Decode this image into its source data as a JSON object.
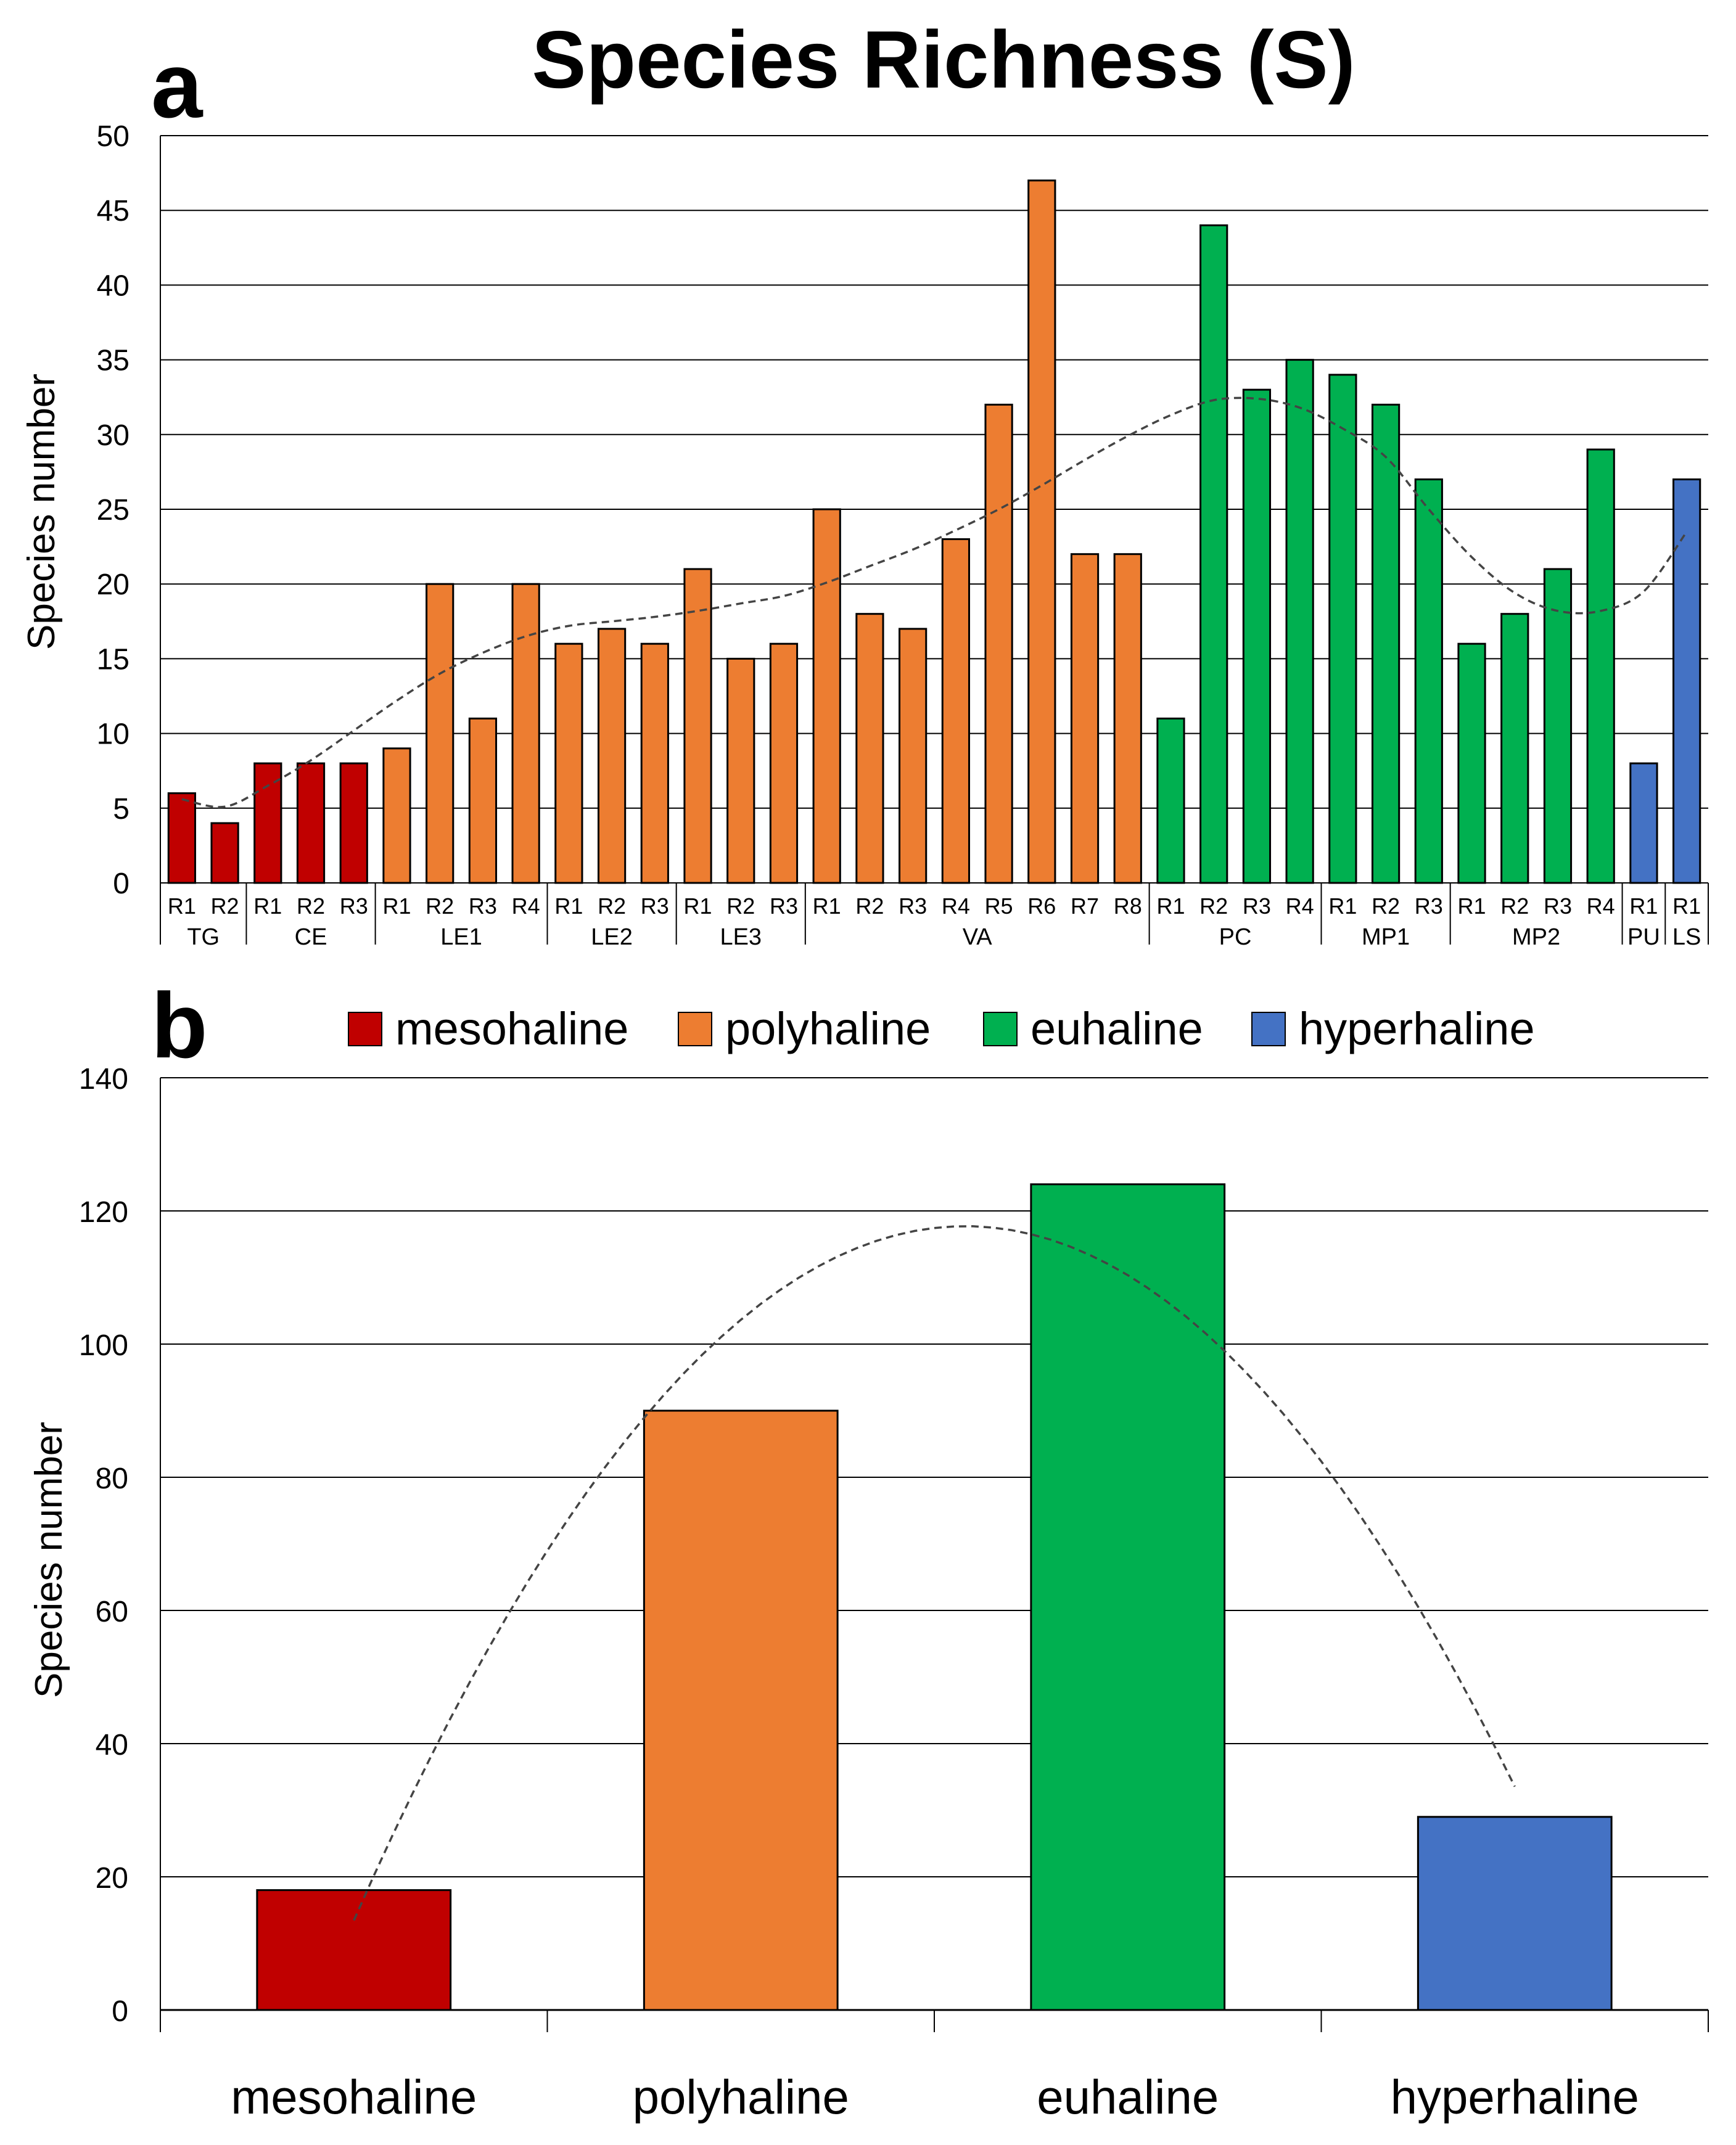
{
  "figure_title": "Species Richness (S)",
  "colors": {
    "mesohaline": "#C00000",
    "polyhaline": "#ED7D31",
    "euhaline": "#00B050",
    "hyperhaline": "#4472C4"
  },
  "chart_data": [
    {
      "panel": "a",
      "type": "bar",
      "title": "Species Richness (S)",
      "xlabel": "",
      "ylabel": "Species number",
      "ylim": [
        0,
        50
      ],
      "ytick_step": 5,
      "yticks": [
        "0",
        "5",
        "10",
        "15",
        "20",
        "25",
        "30",
        "35",
        "40",
        "45",
        "50"
      ],
      "grid": true,
      "trendline": "dashed polynomial",
      "bars": [
        {
          "site": "TG",
          "label": "R1",
          "value": 6,
          "zone": "mesohaline"
        },
        {
          "site": "TG",
          "label": "R2",
          "value": 4,
          "zone": "mesohaline"
        },
        {
          "site": "CE",
          "label": "R1",
          "value": 8,
          "zone": "mesohaline"
        },
        {
          "site": "CE",
          "label": "R2",
          "value": 8,
          "zone": "mesohaline"
        },
        {
          "site": "CE",
          "label": "R3",
          "value": 8,
          "zone": "mesohaline"
        },
        {
          "site": "LE1",
          "label": "R1",
          "value": 9,
          "zone": "polyhaline"
        },
        {
          "site": "LE1",
          "label": "R2",
          "value": 20,
          "zone": "polyhaline"
        },
        {
          "site": "LE1",
          "label": "R3",
          "value": 11,
          "zone": "polyhaline"
        },
        {
          "site": "LE1",
          "label": "R4",
          "value": 20,
          "zone": "polyhaline"
        },
        {
          "site": "LE2",
          "label": "R1",
          "value": 16,
          "zone": "polyhaline"
        },
        {
          "site": "LE2",
          "label": "R2",
          "value": 17,
          "zone": "polyhaline"
        },
        {
          "site": "LE2",
          "label": "R3",
          "value": 16,
          "zone": "polyhaline"
        },
        {
          "site": "LE3",
          "label": "R1",
          "value": 21,
          "zone": "polyhaline"
        },
        {
          "site": "LE3",
          "label": "R2",
          "value": 15,
          "zone": "polyhaline"
        },
        {
          "site": "LE3",
          "label": "R3",
          "value": 16,
          "zone": "polyhaline"
        },
        {
          "site": "VA",
          "label": "R1",
          "value": 25,
          "zone": "polyhaline"
        },
        {
          "site": "VA",
          "label": "R2",
          "value": 18,
          "zone": "polyhaline"
        },
        {
          "site": "VA",
          "label": "R3",
          "value": 17,
          "zone": "polyhaline"
        },
        {
          "site": "VA",
          "label": "R4",
          "value": 23,
          "zone": "polyhaline"
        },
        {
          "site": "VA",
          "label": "R5",
          "value": 32,
          "zone": "polyhaline"
        },
        {
          "site": "VA",
          "label": "R6",
          "value": 47,
          "zone": "polyhaline"
        },
        {
          "site": "VA",
          "label": "R7",
          "value": 22,
          "zone": "polyhaline"
        },
        {
          "site": "VA",
          "label": "R8",
          "value": 22,
          "zone": "polyhaline"
        },
        {
          "site": "PC",
          "label": "R1",
          "value": 11,
          "zone": "euhaline"
        },
        {
          "site": "PC",
          "label": "R2",
          "value": 44,
          "zone": "euhaline"
        },
        {
          "site": "PC",
          "label": "R3",
          "value": 33,
          "zone": "euhaline"
        },
        {
          "site": "PC",
          "label": "R4",
          "value": 35,
          "zone": "euhaline"
        },
        {
          "site": "MP1",
          "label": "R1",
          "value": 34,
          "zone": "euhaline"
        },
        {
          "site": "MP1",
          "label": "R2",
          "value": 32,
          "zone": "euhaline"
        },
        {
          "site": "MP1",
          "label": "R3",
          "value": 27,
          "zone": "euhaline"
        },
        {
          "site": "MP2",
          "label": "R1",
          "value": 16,
          "zone": "euhaline"
        },
        {
          "site": "MP2",
          "label": "R2",
          "value": 18,
          "zone": "euhaline"
        },
        {
          "site": "MP2",
          "label": "R3",
          "value": 21,
          "zone": "euhaline"
        },
        {
          "site": "MP2",
          "label": "R4",
          "value": 29,
          "zone": "euhaline"
        },
        {
          "site": "PU",
          "label": "R1",
          "value": 8,
          "zone": "hyperhaline"
        },
        {
          "site": "LS",
          "label": "R1",
          "value": 27,
          "zone": "hyperhaline"
        }
      ],
      "groups": [
        {
          "name": "TG",
          "count": 2
        },
        {
          "name": "CE",
          "count": 3
        },
        {
          "name": "LE1",
          "count": 4
        },
        {
          "name": "LE2",
          "count": 3
        },
        {
          "name": "LE3",
          "count": 3
        },
        {
          "name": "VA",
          "count": 8
        },
        {
          "name": "PC",
          "count": 4
        },
        {
          "name": "MP1",
          "count": 3
        },
        {
          "name": "MP2",
          "count": 4
        },
        {
          "name": "PU",
          "count": 1
        },
        {
          "name": "LS",
          "count": 1
        }
      ],
      "trend_values": [
        5.6,
        5.1,
        6.5,
        8.2,
        10.2,
        12.2,
        14.0,
        15.4,
        16.5,
        17.2,
        17.5,
        17.8,
        18.2,
        18.7,
        19.2,
        20.1,
        21.2,
        22.3,
        23.6,
        25.0,
        26.6,
        28.3,
        29.9,
        31.3,
        32.3,
        32.4,
        31.8,
        30.4,
        28.5,
        25.0,
        21.8,
        19.4,
        18.2,
        18.2,
        19.5,
        23.5
      ]
    },
    {
      "panel": "b",
      "type": "bar",
      "title": "",
      "xlabel": "",
      "ylabel": "Species number",
      "categories": [
        "mesohaline",
        "polyhaline",
        "euhaline",
        "hyperhaline"
      ],
      "values": [
        18,
        90,
        124,
        29
      ],
      "ylim": [
        0,
        140
      ],
      "ytick_step": 20,
      "yticks": [
        "0",
        "20",
        "40",
        "60",
        "80",
        "100",
        "120",
        "140"
      ],
      "grid": true,
      "legend": {
        "placement": "top",
        "entries": [
          "mesohaline",
          "polyhaline",
          "euhaline",
          "hyperhaline"
        ]
      },
      "trendline": "dashed quadratic"
    }
  ]
}
